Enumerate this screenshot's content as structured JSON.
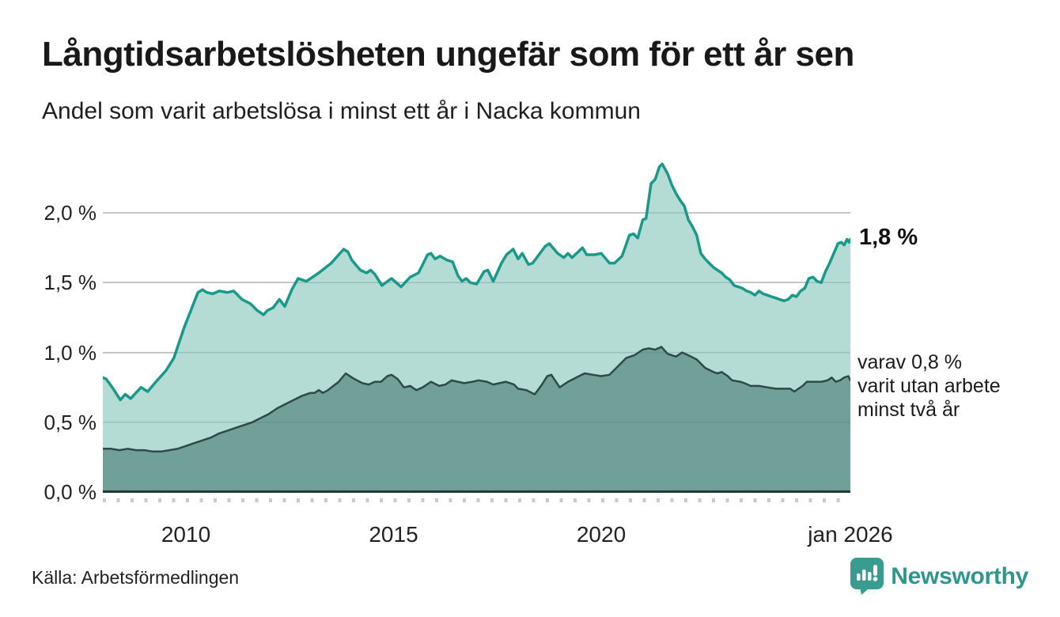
{
  "header": {
    "title": "Långtidsarbetslösheten ungefär som för ett år sen",
    "subtitle": "Andel som varit arbetslösa i minst ett år i Nacka kommun"
  },
  "footer": {
    "source": "Källa: Arbetsförmedlingen",
    "brand": "Newsworthy"
  },
  "colors": {
    "total_line": "#1a998a",
    "total_fill": "#b4dbd4",
    "two_year_line": "#2d4b45",
    "two_year_fill": "#70a098",
    "gridline": "#dcdcdc",
    "axis_baseline": "#1e3b35",
    "brand_teal": "#2f968c",
    "text": "#1b1b1b"
  },
  "chart_data": {
    "type": "area",
    "title": "Långtidsarbetslösheten ungefär som för ett år sen",
    "subtitle": "Andel som varit arbetslösa i minst ett år i Nacka kommun",
    "unit": "%",
    "grid": true,
    "xlim": [
      2008,
      2026
    ],
    "ylim": [
      0,
      2.42
    ],
    "x_ticks": [
      {
        "label": "2010",
        "x": 2010
      },
      {
        "label": "2015",
        "x": 2015
      },
      {
        "label": "2020",
        "x": 2020
      },
      {
        "label": "jan 2026",
        "x": 2026
      }
    ],
    "y_ticks": [
      {
        "label": "0,0 %",
        "value": 0.0
      },
      {
        "label": "0,5 %",
        "value": 0.5
      },
      {
        "label": "1,0 %",
        "value": 1.0
      },
      {
        "label": "1,5 %",
        "value": 1.5
      },
      {
        "label": "2,0 %",
        "value": 2.0
      }
    ],
    "annotations": {
      "end_label": "1,8 %",
      "breakdown": "varav 0,8 %\nvarit utan arbete\nminst två år"
    },
    "series": [
      {
        "id": "total-unemployed-one-year",
        "name": "Andel som varit arbetslösa i minst ett år",
        "end_value": 1.8,
        "line": "#1a998a",
        "fill": "#b4dbd4",
        "width": 3.5,
        "points": [
          [
            2008.0,
            0.82
          ],
          [
            2008.08,
            0.81
          ],
          [
            2008.25,
            0.74
          ],
          [
            2008.42,
            0.66
          ],
          [
            2008.54,
            0.7
          ],
          [
            2008.67,
            0.67
          ],
          [
            2008.92,
            0.75
          ],
          [
            2009.08,
            0.72
          ],
          [
            2009.28,
            0.79
          ],
          [
            2009.52,
            0.87
          ],
          [
            2009.71,
            0.96
          ],
          [
            2009.96,
            1.18
          ],
          [
            2010.29,
            1.43
          ],
          [
            2010.4,
            1.45
          ],
          [
            2010.5,
            1.43
          ],
          [
            2010.65,
            1.42
          ],
          [
            2010.8,
            1.44
          ],
          [
            2011.0,
            1.43
          ],
          [
            2011.15,
            1.44
          ],
          [
            2011.35,
            1.38
          ],
          [
            2011.55,
            1.35
          ],
          [
            2011.72,
            1.3
          ],
          [
            2011.87,
            1.27
          ],
          [
            2011.96,
            1.3
          ],
          [
            2012.1,
            1.32
          ],
          [
            2012.25,
            1.38
          ],
          [
            2012.38,
            1.33
          ],
          [
            2012.55,
            1.45
          ],
          [
            2012.7,
            1.53
          ],
          [
            2012.9,
            1.51
          ],
          [
            2013.2,
            1.57
          ],
          [
            2013.5,
            1.64
          ],
          [
            2013.62,
            1.68
          ],
          [
            2013.8,
            1.74
          ],
          [
            2013.9,
            1.72
          ],
          [
            2014.0,
            1.66
          ],
          [
            2014.2,
            1.59
          ],
          [
            2014.35,
            1.57
          ],
          [
            2014.45,
            1.59
          ],
          [
            2014.55,
            1.56
          ],
          [
            2014.72,
            1.48
          ],
          [
            2014.95,
            1.53
          ],
          [
            2015.18,
            1.47
          ],
          [
            2015.4,
            1.54
          ],
          [
            2015.6,
            1.57
          ],
          [
            2015.82,
            1.7
          ],
          [
            2015.9,
            1.71
          ],
          [
            2016.0,
            1.67
          ],
          [
            2016.12,
            1.69
          ],
          [
            2016.3,
            1.66
          ],
          [
            2016.42,
            1.65
          ],
          [
            2016.55,
            1.55
          ],
          [
            2016.65,
            1.51
          ],
          [
            2016.75,
            1.53
          ],
          [
            2016.85,
            1.5
          ],
          [
            2017.0,
            1.49
          ],
          [
            2017.18,
            1.58
          ],
          [
            2017.27,
            1.59
          ],
          [
            2017.4,
            1.51
          ],
          [
            2017.6,
            1.64
          ],
          [
            2017.72,
            1.7
          ],
          [
            2017.88,
            1.74
          ],
          [
            2018.0,
            1.67
          ],
          [
            2018.1,
            1.71
          ],
          [
            2018.25,
            1.63
          ],
          [
            2018.35,
            1.64
          ],
          [
            2018.5,
            1.7
          ],
          [
            2018.65,
            1.76
          ],
          [
            2018.75,
            1.78
          ],
          [
            2018.95,
            1.71
          ],
          [
            2019.1,
            1.68
          ],
          [
            2019.2,
            1.71
          ],
          [
            2019.3,
            1.68
          ],
          [
            2019.55,
            1.75
          ],
          [
            2019.65,
            1.7
          ],
          [
            2019.85,
            1.7
          ],
          [
            2020.0,
            1.71
          ],
          [
            2020.2,
            1.64
          ],
          [
            2020.32,
            1.64
          ],
          [
            2020.5,
            1.69
          ],
          [
            2020.68,
            1.84
          ],
          [
            2020.78,
            1.85
          ],
          [
            2020.88,
            1.82
          ],
          [
            2021.0,
            1.95
          ],
          [
            2021.08,
            1.96
          ],
          [
            2021.2,
            2.21
          ],
          [
            2021.3,
            2.24
          ],
          [
            2021.4,
            2.33
          ],
          [
            2021.47,
            2.35
          ],
          [
            2021.6,
            2.28
          ],
          [
            2021.7,
            2.2
          ],
          [
            2021.8,
            2.14
          ],
          [
            2021.9,
            2.09
          ],
          [
            2022.0,
            2.05
          ],
          [
            2022.1,
            1.95
          ],
          [
            2022.2,
            1.9
          ],
          [
            2022.3,
            1.84
          ],
          [
            2022.4,
            1.71
          ],
          [
            2022.5,
            1.67
          ],
          [
            2022.6,
            1.64
          ],
          [
            2022.7,
            1.61
          ],
          [
            2022.8,
            1.59
          ],
          [
            2022.9,
            1.57
          ],
          [
            2023.0,
            1.54
          ],
          [
            2023.1,
            1.52
          ],
          [
            2023.2,
            1.48
          ],
          [
            2023.3,
            1.47
          ],
          [
            2023.4,
            1.46
          ],
          [
            2023.5,
            1.44
          ],
          [
            2023.6,
            1.43
          ],
          [
            2023.7,
            1.41
          ],
          [
            2023.8,
            1.44
          ],
          [
            2023.9,
            1.42
          ],
          [
            2024.0,
            1.41
          ],
          [
            2024.1,
            1.4
          ],
          [
            2024.2,
            1.39
          ],
          [
            2024.3,
            1.38
          ],
          [
            2024.4,
            1.37
          ],
          [
            2024.5,
            1.38
          ],
          [
            2024.6,
            1.41
          ],
          [
            2024.7,
            1.4
          ],
          [
            2024.8,
            1.44
          ],
          [
            2024.9,
            1.46
          ],
          [
            2025.0,
            1.53
          ],
          [
            2025.1,
            1.54
          ],
          [
            2025.2,
            1.51
          ],
          [
            2025.3,
            1.5
          ],
          [
            2025.4,
            1.58
          ],
          [
            2025.5,
            1.64
          ],
          [
            2025.6,
            1.71
          ],
          [
            2025.7,
            1.78
          ],
          [
            2025.78,
            1.79
          ],
          [
            2025.85,
            1.77
          ],
          [
            2025.92,
            1.81
          ],
          [
            2025.97,
            1.79
          ],
          [
            2026.0,
            1.81
          ]
        ]
      },
      {
        "id": "unemployed-two-years",
        "name": "varav utan arbete minst två år",
        "end_value": 0.8,
        "line": "#2d4b45",
        "fill": "#70a098",
        "width": 2.5,
        "points": [
          [
            2008.0,
            0.31
          ],
          [
            2008.2,
            0.31
          ],
          [
            2008.4,
            0.3
          ],
          [
            2008.6,
            0.31
          ],
          [
            2008.8,
            0.3
          ],
          [
            2009.0,
            0.3
          ],
          [
            2009.2,
            0.29
          ],
          [
            2009.4,
            0.29
          ],
          [
            2009.6,
            0.3
          ],
          [
            2009.8,
            0.31
          ],
          [
            2010.0,
            0.33
          ],
          [
            2010.2,
            0.35
          ],
          [
            2010.4,
            0.37
          ],
          [
            2010.6,
            0.39
          ],
          [
            2010.8,
            0.42
          ],
          [
            2011.0,
            0.44
          ],
          [
            2011.2,
            0.46
          ],
          [
            2011.4,
            0.48
          ],
          [
            2011.6,
            0.5
          ],
          [
            2011.8,
            0.53
          ],
          [
            2012.0,
            0.56
          ],
          [
            2012.2,
            0.6
          ],
          [
            2012.4,
            0.63
          ],
          [
            2012.6,
            0.66
          ],
          [
            2012.8,
            0.69
          ],
          [
            2013.0,
            0.71
          ],
          [
            2013.1,
            0.71
          ],
          [
            2013.2,
            0.73
          ],
          [
            2013.3,
            0.71
          ],
          [
            2013.42,
            0.73
          ],
          [
            2013.55,
            0.76
          ],
          [
            2013.68,
            0.79
          ],
          [
            2013.85,
            0.85
          ],
          [
            2014.0,
            0.82
          ],
          [
            2014.12,
            0.8
          ],
          [
            2014.25,
            0.78
          ],
          [
            2014.4,
            0.77
          ],
          [
            2014.55,
            0.79
          ],
          [
            2014.7,
            0.79
          ],
          [
            2014.85,
            0.83
          ],
          [
            2014.95,
            0.84
          ],
          [
            2015.1,
            0.81
          ],
          [
            2015.25,
            0.75
          ],
          [
            2015.4,
            0.76
          ],
          [
            2015.55,
            0.73
          ],
          [
            2015.7,
            0.75
          ],
          [
            2015.9,
            0.79
          ],
          [
            2016.1,
            0.76
          ],
          [
            2016.25,
            0.77
          ],
          [
            2016.4,
            0.8
          ],
          [
            2016.55,
            0.79
          ],
          [
            2016.7,
            0.78
          ],
          [
            2016.9,
            0.79
          ],
          [
            2017.05,
            0.8
          ],
          [
            2017.25,
            0.79
          ],
          [
            2017.4,
            0.77
          ],
          [
            2017.55,
            0.78
          ],
          [
            2017.7,
            0.79
          ],
          [
            2017.9,
            0.77
          ],
          [
            2018.0,
            0.74
          ],
          [
            2018.2,
            0.73
          ],
          [
            2018.4,
            0.7
          ],
          [
            2018.55,
            0.76
          ],
          [
            2018.7,
            0.83
          ],
          [
            2018.8,
            0.84
          ],
          [
            2019.0,
            0.75
          ],
          [
            2019.2,
            0.79
          ],
          [
            2019.4,
            0.82
          ],
          [
            2019.6,
            0.85
          ],
          [
            2019.8,
            0.84
          ],
          [
            2020.0,
            0.83
          ],
          [
            2020.2,
            0.84
          ],
          [
            2020.4,
            0.9
          ],
          [
            2020.6,
            0.96
          ],
          [
            2020.8,
            0.98
          ],
          [
            2021.0,
            1.02
          ],
          [
            2021.15,
            1.03
          ],
          [
            2021.3,
            1.02
          ],
          [
            2021.45,
            1.04
          ],
          [
            2021.6,
            0.99
          ],
          [
            2021.8,
            0.97
          ],
          [
            2021.95,
            1.0
          ],
          [
            2022.1,
            0.98
          ],
          [
            2022.3,
            0.95
          ],
          [
            2022.5,
            0.89
          ],
          [
            2022.7,
            0.86
          ],
          [
            2022.8,
            0.85
          ],
          [
            2022.9,
            0.86
          ],
          [
            2023.05,
            0.83
          ],
          [
            2023.15,
            0.8
          ],
          [
            2023.35,
            0.79
          ],
          [
            2023.45,
            0.78
          ],
          [
            2023.6,
            0.76
          ],
          [
            2023.8,
            0.76
          ],
          [
            2024.0,
            0.75
          ],
          [
            2024.2,
            0.74
          ],
          [
            2024.4,
            0.74
          ],
          [
            2024.55,
            0.74
          ],
          [
            2024.65,
            0.72
          ],
          [
            2024.75,
            0.74
          ],
          [
            2024.85,
            0.76
          ],
          [
            2024.95,
            0.79
          ],
          [
            2025.1,
            0.79
          ],
          [
            2025.3,
            0.79
          ],
          [
            2025.45,
            0.8
          ],
          [
            2025.55,
            0.82
          ],
          [
            2025.65,
            0.79
          ],
          [
            2025.75,
            0.8
          ],
          [
            2025.85,
            0.82
          ],
          [
            2025.95,
            0.83
          ],
          [
            2026.0,
            0.8
          ]
        ]
      }
    ]
  }
}
